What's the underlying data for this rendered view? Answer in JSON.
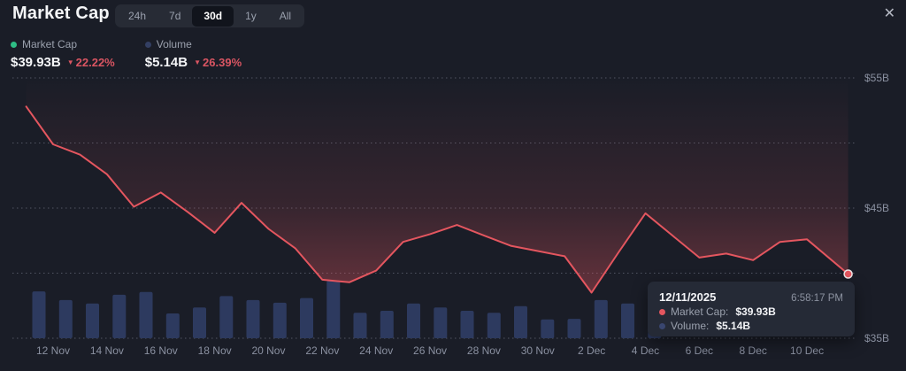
{
  "header": {
    "title": "Market Cap",
    "ranges": [
      {
        "label": "24h"
      },
      {
        "label": "7d"
      },
      {
        "label": "30d"
      },
      {
        "label": "1y"
      },
      {
        "label": "All"
      }
    ],
    "selected_range": "30d",
    "close_label": "✕"
  },
  "legend": {
    "items": [
      {
        "label": "Market Cap",
        "value": "$39.93B",
        "change": "22.22%",
        "direction": "down",
        "dot_color": "#2ebd85"
      },
      {
        "label": "Volume",
        "value": "$5.14B",
        "change": "26.39%",
        "direction": "down",
        "dot_color": "#333f63"
      }
    ]
  },
  "tooltip": {
    "date": "12/11/2025",
    "time": "6:58:17 PM",
    "rows": [
      {
        "label": "Market Cap:",
        "value": "$39.93B",
        "dot_color": "#e4565f"
      },
      {
        "label": "Volume:",
        "value": "$5.14B",
        "dot_color": "#39466f"
      }
    ]
  },
  "colors": {
    "background": "#1a1d27",
    "line_red": "#e4565f",
    "volume_bar": "#2d3a5f",
    "legend_green": "#2ebd85",
    "change_red": "#d95562",
    "grid": "#5f6472",
    "axis_text": "#8a90a0",
    "tooltip_bg": "#252a36"
  },
  "chart_data": {
    "type": "line+bar",
    "title": "Market Cap (30d)",
    "grid": "dotted-horizontal",
    "legend_position": "top-left",
    "y_axis": {
      "unit": "$B",
      "range": [
        35,
        57
      ],
      "gridlines": [
        55,
        50,
        45,
        40,
        35
      ],
      "tick_labels": [
        {
          "label": "$55B",
          "value": 55
        },
        {
          "label": "$45B",
          "value": 45
        },
        {
          "label": "$35B",
          "value": 35
        }
      ]
    },
    "x_axis": {
      "tick_labels": [
        {
          "label": "12 Nov",
          "day": 1
        },
        {
          "label": "14 Nov",
          "day": 3
        },
        {
          "label": "16 Nov",
          "day": 5
        },
        {
          "label": "18 Nov",
          "day": 7
        },
        {
          "label": "20 Nov",
          "day": 9
        },
        {
          "label": "22 Nov",
          "day": 11
        },
        {
          "label": "24 Nov",
          "day": 13
        },
        {
          "label": "26 Nov",
          "day": 15
        },
        {
          "label": "28 Nov",
          "day": 17
        },
        {
          "label": "30 Nov",
          "day": 19
        },
        {
          "label": "2 Dec",
          "day": 21
        },
        {
          "label": "4 Dec",
          "day": 23
        },
        {
          "label": "6 Dec",
          "day": 25
        },
        {
          "label": "8 Dec",
          "day": 27
        },
        {
          "label": "10 Dec",
          "day": 29
        }
      ]
    },
    "series": [
      {
        "name": "Market Cap",
        "type": "line",
        "color": "#e4565f",
        "unit": "$B",
        "points": [
          {
            "date": "11 Nov",
            "day": 0,
            "value": 52.8
          },
          {
            "date": "12 Nov",
            "day": 1,
            "value": 49.9
          },
          {
            "date": "13 Nov",
            "day": 2,
            "value": 49.1
          },
          {
            "date": "14 Nov",
            "day": 3,
            "value": 47.6
          },
          {
            "date": "15 Nov",
            "day": 4,
            "value": 45.1
          },
          {
            "date": "16 Nov",
            "day": 5,
            "value": 46.2
          },
          {
            "date": "17 Nov",
            "day": 6,
            "value": 44.7
          },
          {
            "date": "18 Nov",
            "day": 7,
            "value": 43.1
          },
          {
            "date": "19 Nov",
            "day": 8,
            "value": 45.4
          },
          {
            "date": "20 Nov",
            "day": 9,
            "value": 43.4
          },
          {
            "date": "21 Nov",
            "day": 10,
            "value": 41.9
          },
          {
            "date": "22 Nov",
            "day": 11,
            "value": 39.5
          },
          {
            "date": "23 Nov",
            "day": 12,
            "value": 39.3
          },
          {
            "date": "24 Nov",
            "day": 13,
            "value": 40.2
          },
          {
            "date": "25 Nov",
            "day": 14,
            "value": 42.4
          },
          {
            "date": "26 Nov",
            "day": 15,
            "value": 43.0
          },
          {
            "date": "27 Nov",
            "day": 16,
            "value": 43.7
          },
          {
            "date": "28 Nov",
            "day": 17,
            "value": 42.9
          },
          {
            "date": "29 Nov",
            "day": 18,
            "value": 42.1
          },
          {
            "date": "30 Nov",
            "day": 19,
            "value": 41.7
          },
          {
            "date": "1 Dec",
            "day": 20,
            "value": 41.3
          },
          {
            "date": "2 Dec",
            "day": 21,
            "value": 38.5
          },
          {
            "date": "3 Dec",
            "day": 22,
            "value": 41.6
          },
          {
            "date": "4 Dec",
            "day": 23,
            "value": 44.6
          },
          {
            "date": "5 Dec",
            "day": 24,
            "value": 42.9
          },
          {
            "date": "6 Dec",
            "day": 25,
            "value": 41.2
          },
          {
            "date": "7 Dec",
            "day": 26,
            "value": 41.5
          },
          {
            "date": "8 Dec",
            "day": 27,
            "value": 41.0
          },
          {
            "date": "9 Dec",
            "day": 28,
            "value": 42.4
          },
          {
            "date": "10 Dec",
            "day": 29,
            "value": 42.6
          },
          {
            "date": "11 Dec",
            "day": 30.53,
            "value": 39.93
          }
        ]
      },
      {
        "name": "Volume",
        "type": "bar",
        "color": "#2d3a5f",
        "unit": "$B",
        "values": [
          7.0,
          5.7,
          5.2,
          6.5,
          6.9,
          3.7,
          4.6,
          6.3,
          5.7,
          5.3,
          6.0,
          8.6,
          3.8,
          4.1,
          5.2,
          4.6,
          4.1,
          3.8,
          4.8,
          2.8,
          2.9,
          5.7,
          5.2,
          5.2
        ]
      }
    ]
  }
}
